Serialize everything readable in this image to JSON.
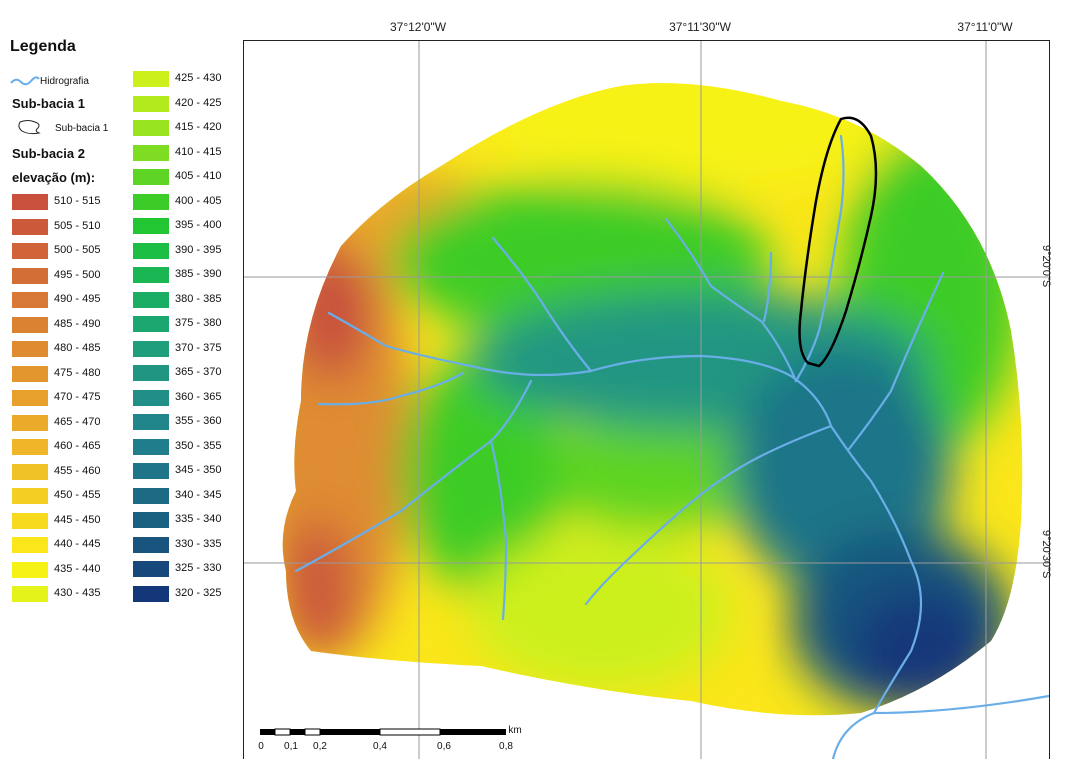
{
  "legend": {
    "title": "Legenda",
    "hydro_label": "Hidrografia",
    "sub1_heading": "Sub-bacia 1",
    "sub1_label": "Sub-bacia 1",
    "sub2_heading": "Sub-bacia 2",
    "elev_heading": "elevação (m):",
    "col1": [
      {
        "label": "510 - 515",
        "color": "#c8503c"
      },
      {
        "label": "505 - 510",
        "color": "#cc5a3a"
      },
      {
        "label": "500 - 505",
        "color": "#d06438"
      },
      {
        "label": "495 - 500",
        "color": "#d36e36"
      },
      {
        "label": "490 - 495",
        "color": "#d77834"
      },
      {
        "label": "485 - 490",
        "color": "#db8232"
      },
      {
        "label": "480 - 485",
        "color": "#df8c30"
      },
      {
        "label": "475 - 480",
        "color": "#e3962e"
      },
      {
        "label": "470 - 475",
        "color": "#e7a02c"
      },
      {
        "label": "465 - 470",
        "color": "#ebaa2a"
      },
      {
        "label": "460 - 465",
        "color": "#eeb628"
      },
      {
        "label": "455 - 460",
        "color": "#f1c226"
      },
      {
        "label": "450 - 455",
        "color": "#f4ce22"
      },
      {
        "label": "445 - 450",
        "color": "#f7da1e"
      },
      {
        "label": "440 - 445",
        "color": "#fae61a"
      },
      {
        "label": "435 - 440",
        "color": "#f7f216"
      },
      {
        "label": "430 - 435",
        "color": "#e4f41a"
      }
    ],
    "col2": [
      {
        "label": "425 - 430",
        "color": "#ccf01c"
      },
      {
        "label": "420 - 425",
        "color": "#b2ea1e"
      },
      {
        "label": "415 - 420",
        "color": "#98e420"
      },
      {
        "label": "410 - 415",
        "color": "#7edc22"
      },
      {
        "label": "405 - 410",
        "color": "#5ed424"
      },
      {
        "label": "400 - 405",
        "color": "#3ccc28"
      },
      {
        "label": "395 - 400",
        "color": "#22c632"
      },
      {
        "label": "390 - 395",
        "color": "#1cbe44"
      },
      {
        "label": "385 - 390",
        "color": "#1ab654"
      },
      {
        "label": "380 - 385",
        "color": "#1aae64"
      },
      {
        "label": "375 - 380",
        "color": "#1ca670"
      },
      {
        "label": "370 - 375",
        "color": "#1e9e7a"
      },
      {
        "label": "365 - 370",
        "color": "#209682"
      },
      {
        "label": "360 - 365",
        "color": "#218e88"
      },
      {
        "label": "355 - 360",
        "color": "#21868c"
      },
      {
        "label": "350 - 355",
        "color": "#207e8c"
      },
      {
        "label": "345 - 350",
        "color": "#1e7488"
      },
      {
        "label": "340 - 345",
        "color": "#1c6a84"
      },
      {
        "label": "335 - 340",
        "color": "#1a6080"
      },
      {
        "label": "330 - 335",
        "color": "#18547e"
      },
      {
        "label": "325 - 330",
        "color": "#16487c"
      },
      {
        "label": "320 - 325",
        "color": "#14377a"
      }
    ]
  },
  "coords": {
    "top": [
      "37°12'0\"W",
      "37°11'30\"W",
      "37°11'0\"W"
    ],
    "right": [
      "9°20'0\"S",
      "9°20'30\"S"
    ]
  },
  "scale": {
    "unit": "km",
    "ticks": [
      "0",
      "0,1",
      "0,2",
      "0,4",
      "0,6",
      "0,8"
    ]
  },
  "colors": {
    "river": "#6aaee8",
    "sub_basin_outline": "#000000",
    "grid": "#9a9a9a"
  }
}
